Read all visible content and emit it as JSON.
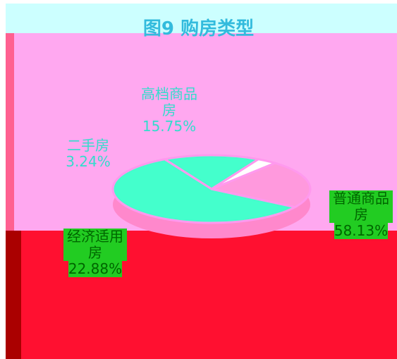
{
  "chart_data": {
    "type": "pie",
    "title": "图9 购房类型",
    "categories": [
      "高档商品房",
      "二手房",
      "经济适用房",
      "普通商品房"
    ],
    "values": [
      15.75,
      3.24,
      22.88,
      58.13
    ],
    "value_labels": [
      "15.75%",
      "3.24%",
      "22.88%",
      "58.13%"
    ],
    "colors": [
      "#44ffcc",
      "#ffffff",
      "#ff99dd",
      "#44ffcc"
    ]
  }
}
